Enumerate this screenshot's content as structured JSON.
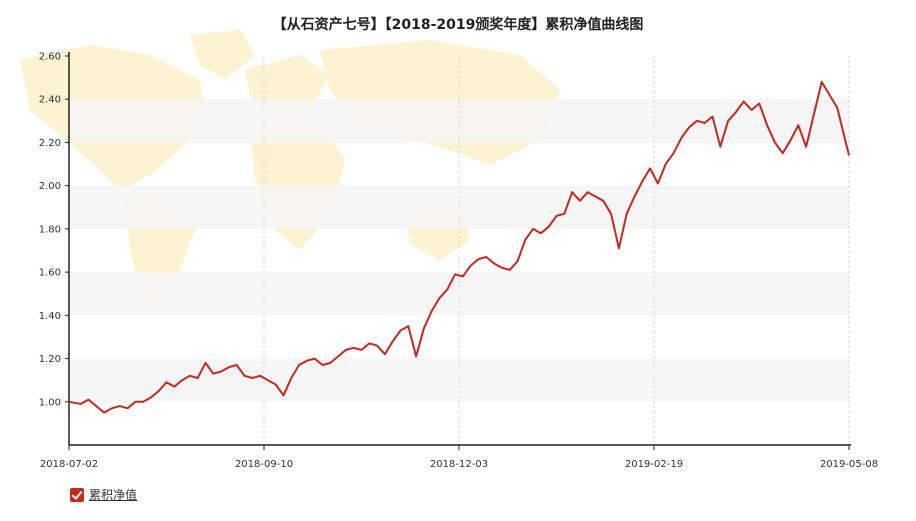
{
  "title": "【从石资产七号】【2018-2019颁奖年度】累积净值曲线图",
  "legend": {
    "label": "累积净值",
    "checked": true
  },
  "colors": {
    "line": "#c7291f",
    "axis": "#222222",
    "band": "#f4f4f4",
    "grid": "#cccccc",
    "map": "#fbf0c8"
  },
  "chart_data": {
    "type": "line",
    "title": "【从石资产七号】【2018-2019颁奖年度】累积净值曲线图",
    "xlabel": "",
    "ylabel": "",
    "x_tick_labels": [
      "2018-07-02",
      "2018-09-10",
      "2018-12-03",
      "2019-02-19",
      "2019-05-08"
    ],
    "y_tick_labels": [
      "1.00",
      "1.20",
      "1.40",
      "1.60",
      "1.80",
      "2.00",
      "2.20",
      "2.40",
      "2.60"
    ],
    "ylim": [
      0.8,
      2.6
    ],
    "x_range": [
      0,
      100
    ],
    "grid": "vertical dashed at x ticks, alternating horizontal bands",
    "legend_position": "bottom-left",
    "series": [
      {
        "name": "累积净值",
        "color": "#c7291f",
        "x": [
          0,
          1.5,
          2.5,
          3.5,
          4.5,
          5.5,
          6.5,
          7.5,
          8.5,
          9.5,
          10.5,
          11.5,
          12.5,
          13.5,
          14.5,
          15.5,
          16.5,
          17.5,
          18.5,
          19.5,
          20.5,
          21.5,
          22.5,
          23.5,
          24.5,
          25.5,
          26.5,
          27.5,
          28.5,
          29.5,
          30.5,
          31.5,
          32.5,
          33.5,
          34.5,
          35.5,
          36.5,
          37.5,
          38.5,
          39.5,
          40.5,
          41.5,
          42.5,
          43.5,
          44.5,
          45.5,
          46.5,
          47.5,
          48.5,
          49.5,
          50.5,
          51.5,
          52.5,
          53.5,
          54.5,
          55.5,
          56.5,
          57.5,
          58.5,
          59.5,
          60.5,
          61.5,
          62.5,
          63.5,
          64.5,
          65.5,
          66.5,
          67.5,
          68.5,
          69.5,
          70.5,
          71.5,
          72.5,
          73.5,
          74.5,
          75.5,
          76.5,
          77.5,
          78.5,
          79.5,
          80.5,
          81.5,
          82.5,
          83.5,
          84.5,
          85.5,
          86.5,
          87.5,
          88.5,
          89.5,
          90.5,
          91.5,
          92.5,
          93.5,
          94.5,
          95.5,
          96.5,
          97.5,
          98.5,
          100
        ],
        "y": [
          1.0,
          0.99,
          1.01,
          0.98,
          0.95,
          0.97,
          0.98,
          0.97,
          1.0,
          1.0,
          1.02,
          1.05,
          1.09,
          1.07,
          1.1,
          1.12,
          1.11,
          1.18,
          1.13,
          1.14,
          1.16,
          1.17,
          1.12,
          1.11,
          1.12,
          1.1,
          1.08,
          1.03,
          1.11,
          1.17,
          1.19,
          1.2,
          1.17,
          1.18,
          1.21,
          1.24,
          1.25,
          1.24,
          1.27,
          1.26,
          1.22,
          1.28,
          1.33,
          1.35,
          1.21,
          1.34,
          1.42,
          1.48,
          1.52,
          1.59,
          1.58,
          1.63,
          1.66,
          1.67,
          1.64,
          1.62,
          1.61,
          1.65,
          1.75,
          1.8,
          1.78,
          1.81,
          1.86,
          1.87,
          1.97,
          1.93,
          1.97,
          1.95,
          1.93,
          1.87,
          1.71,
          1.87,
          1.95,
          2.02,
          2.08,
          2.01,
          2.1,
          2.15,
          2.22,
          2.27,
          2.3,
          2.29,
          2.32,
          2.18,
          2.3,
          2.34,
          2.39,
          2.35,
          2.38,
          2.28,
          2.2,
          2.15,
          2.21,
          2.28,
          2.18,
          2.33,
          2.48,
          2.42,
          2.36,
          2.14
        ]
      }
    ]
  }
}
